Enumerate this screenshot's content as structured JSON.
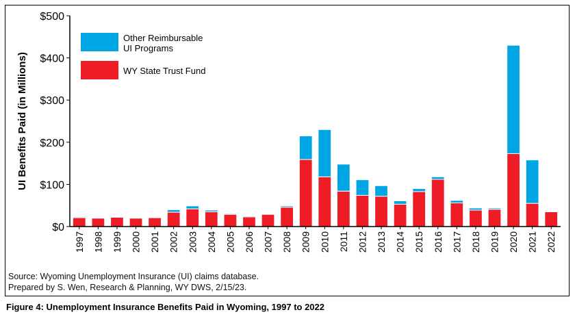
{
  "chart_data": {
    "type": "bar",
    "stacked": true,
    "ylabel": "UI Benefits Paid (in Millions)",
    "yticks": [
      "$0",
      "$100",
      "$200",
      "$300",
      "$400",
      "$500"
    ],
    "ylim": [
      0,
      500
    ],
    "grid": false,
    "legend_placement": "top-left",
    "categories": [
      "1997",
      "1998",
      "1999",
      "2000",
      "2001",
      "2002",
      "2003",
      "2004",
      "2005",
      "2006",
      "2007",
      "2008",
      "2009",
      "2010",
      "2011",
      "2012",
      "2013",
      "2014",
      "2015",
      "2016",
      "2017",
      "2018",
      "2019",
      "2020",
      "2021",
      "2022"
    ],
    "series": [
      {
        "name": "WY State Trust Fund",
        "color": "#ee1c25",
        "values": [
          21,
          20,
          22,
          20,
          21,
          34,
          42,
          35,
          29,
          23,
          29,
          46,
          159,
          118,
          84,
          74,
          72,
          53,
          83,
          112,
          56,
          39,
          41,
          173,
          55,
          35
        ]
      },
      {
        "name": "Other Reimbursable UI Programs",
        "color": "#00a6e4",
        "values": [
          2,
          1,
          1,
          1,
          1,
          6,
          7,
          4,
          2,
          2,
          1,
          3,
          56,
          112,
          64,
          37,
          25,
          8,
          7,
          6,
          6,
          5,
          3,
          257,
          103,
          0
        ]
      }
    ]
  },
  "legend": {
    "other_line1": "Other Reimbursable",
    "other_line2": "UI Programs",
    "trust_label": "WY State Trust Fund"
  },
  "source": {
    "line1": "Source: Wyoming Unemployment Insurance (UI) claims database.",
    "line2": "Prepared by S. Wen, Research & Planning, WY DWS, 2/15/23."
  },
  "caption": "Figure 4: Unemployment Insurance Benefits Paid in Wyoming, 1997 to 2022"
}
